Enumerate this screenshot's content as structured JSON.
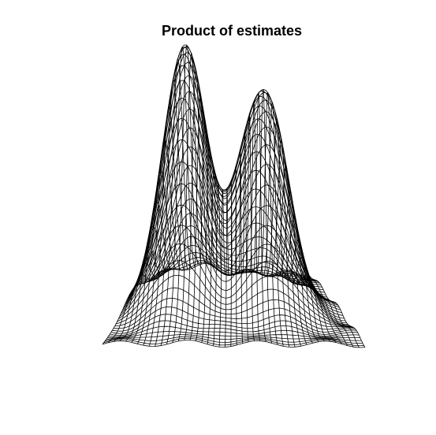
{
  "chart_data": {
    "type": "surface",
    "title": "Product of estimates",
    "xlabel": "",
    "ylabel": "",
    "zlabel": "",
    "axes_shown": false,
    "grid_resolution": [
      46,
      46
    ],
    "colors": {
      "background": "#ffffff",
      "mesh": "#000000"
    },
    "peaks": [
      {
        "name": "",
        "relative_height": 1.0,
        "position": "left"
      },
      {
        "name": "",
        "relative_height": 0.81,
        "position": "right"
      }
    ]
  }
}
